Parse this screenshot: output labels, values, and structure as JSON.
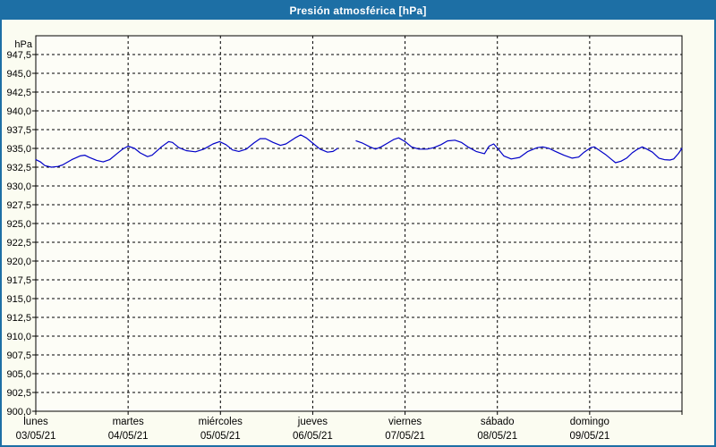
{
  "window": {
    "title": "Presión atmosférica [hPa]"
  },
  "colors": {
    "titlebar_bg": "#1d6fa5",
    "titlebar_text": "#ffffff",
    "window_border": "#1d6fa5",
    "page_bg": "#fbfcf1",
    "plot_bg": "#fdfdf7",
    "plot_border": "#000000",
    "grid": "#000000",
    "line": "#0000c8",
    "label_text": "#000000"
  },
  "chart_data": {
    "type": "line",
    "title": "Presión atmosférica [hPa]",
    "ylabel": "hPa",
    "xlabel": "",
    "ylim": [
      900,
      950
    ],
    "y_step": 2.5,
    "grid": "dashed",
    "legend": "none",
    "y_tick_labels": [
      "947,5",
      "945,0",
      "942,5",
      "940,0",
      "937,5",
      "935,0",
      "932,5",
      "930,0",
      "927,5",
      "925,0",
      "922,5",
      "920,0",
      "917,5",
      "915,0",
      "912,5",
      "910,0",
      "907,5",
      "905,0",
      "902,5",
      "900,0"
    ],
    "x_axis": {
      "days": [
        {
          "name": "lunes",
          "date": "03/05/21"
        },
        {
          "name": "martes",
          "date": "04/05/21"
        },
        {
          "name": "miércoles",
          "date": "05/05/21"
        },
        {
          "name": "jueves",
          "date": "06/05/21"
        },
        {
          "name": "viernes",
          "date": "07/05/21"
        },
        {
          "name": "sábado",
          "date": "08/05/21"
        },
        {
          "name": "domingo",
          "date": "09/05/21"
        }
      ]
    },
    "series": [
      {
        "name": "presión atmosférica",
        "unit": "hPa",
        "color": "#0000c8",
        "segments": [
          [
            [
              0.0,
              933.5
            ],
            [
              0.05,
              933.2
            ],
            [
              0.1,
              932.7
            ],
            [
              0.17,
              932.5
            ],
            [
              0.24,
              932.6
            ],
            [
              0.29,
              932.8
            ],
            [
              0.39,
              933.5
            ],
            [
              0.48,
              934.0
            ],
            [
              0.53,
              934.1
            ],
            [
              0.58,
              933.8
            ],
            [
              0.66,
              933.4
            ],
            [
              0.73,
              933.2
            ],
            [
              0.8,
              933.5
            ],
            [
              0.87,
              934.2
            ],
            [
              0.94,
              934.9
            ],
            [
              1.0,
              935.3
            ],
            [
              1.07,
              935.0
            ],
            [
              1.13,
              934.4
            ],
            [
              1.21,
              933.9
            ],
            [
              1.26,
              934.1
            ],
            [
              1.36,
              935.2
            ],
            [
              1.44,
              935.9
            ],
            [
              1.48,
              935.8
            ],
            [
              1.55,
              935.1
            ],
            [
              1.63,
              934.7
            ],
            [
              1.73,
              934.55
            ],
            [
              1.82,
              934.9
            ],
            [
              1.92,
              935.6
            ],
            [
              1.99,
              935.9
            ],
            [
              2.06,
              935.5
            ],
            [
              2.13,
              934.8
            ],
            [
              2.2,
              934.6
            ],
            [
              2.28,
              934.9
            ],
            [
              2.36,
              935.7
            ],
            [
              2.43,
              936.3
            ],
            [
              2.49,
              936.3
            ],
            [
              2.57,
              935.8
            ],
            [
              2.65,
              935.4
            ],
            [
              2.71,
              935.6
            ],
            [
              2.81,
              936.4
            ],
            [
              2.87,
              936.8
            ],
            [
              2.93,
              936.4
            ],
            [
              3.01,
              935.6
            ],
            [
              3.08,
              934.9
            ],
            [
              3.16,
              934.5
            ],
            [
              3.22,
              934.6
            ],
            [
              3.27,
              935.0
            ]
          ],
          [
            [
              3.47,
              936.0
            ],
            [
              3.54,
              935.7
            ],
            [
              3.62,
              935.2
            ],
            [
              3.68,
              934.9
            ],
            [
              3.74,
              935.2
            ],
            [
              3.81,
              935.7
            ],
            [
              3.88,
              936.2
            ],
            [
              3.93,
              936.4
            ],
            [
              4.0,
              935.9
            ],
            [
              4.07,
              935.2
            ],
            [
              4.15,
              934.9
            ],
            [
              4.24,
              934.9
            ],
            [
              4.31,
              935.1
            ],
            [
              4.39,
              935.5
            ],
            [
              4.46,
              936.0
            ],
            [
              4.54,
              936.1
            ],
            [
              4.61,
              935.8
            ],
            [
              4.68,
              935.2
            ],
            [
              4.77,
              934.6
            ],
            [
              4.86,
              934.3
            ],
            [
              4.91,
              935.3
            ],
            [
              4.96,
              935.6
            ],
            [
              5.01,
              934.9
            ],
            [
              5.07,
              934.0
            ],
            [
              5.15,
              933.6
            ],
            [
              5.24,
              933.8
            ],
            [
              5.33,
              934.6
            ],
            [
              5.43,
              935.1
            ],
            [
              5.49,
              935.2
            ],
            [
              5.56,
              935.0
            ],
            [
              5.63,
              934.6
            ],
            [
              5.72,
              934.1
            ],
            [
              5.81,
              933.7
            ],
            [
              5.88,
              933.85
            ],
            [
              5.94,
              934.5
            ],
            [
              6.01,
              935.1
            ],
            [
              6.05,
              935.2
            ],
            [
              6.11,
              934.7
            ],
            [
              6.17,
              934.2
            ],
            [
              6.23,
              933.6
            ],
            [
              6.28,
              933.1
            ],
            [
              6.34,
              933.3
            ],
            [
              6.4,
              933.7
            ],
            [
              6.46,
              934.4
            ],
            [
              6.52,
              934.9
            ],
            [
              6.57,
              935.2
            ],
            [
              6.62,
              934.9
            ],
            [
              6.68,
              934.5
            ],
            [
              6.75,
              933.7
            ],
            [
              6.81,
              933.5
            ],
            [
              6.87,
              933.45
            ],
            [
              6.91,
              933.6
            ],
            [
              6.96,
              934.3
            ],
            [
              7.0,
              935.0
            ]
          ]
        ]
      }
    ]
  }
}
